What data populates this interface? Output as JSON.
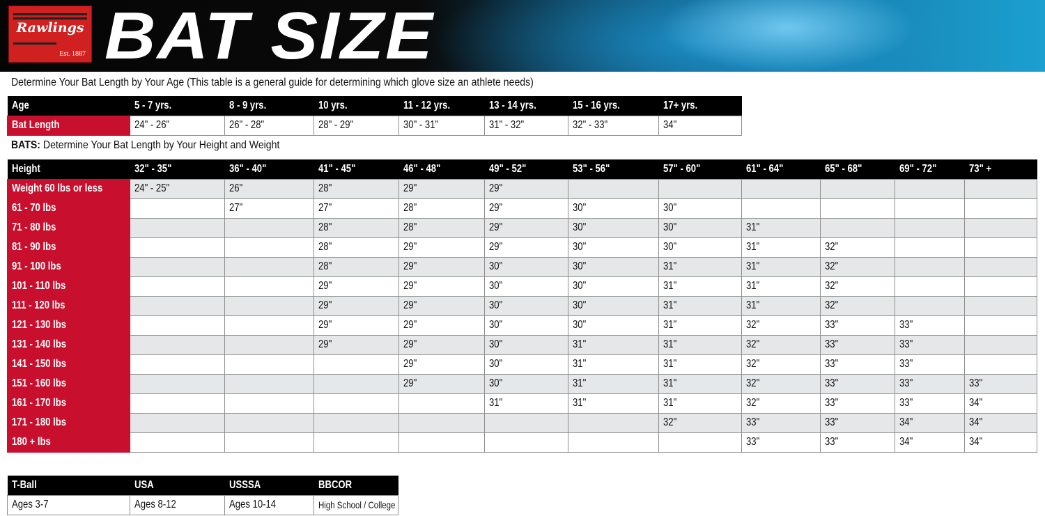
{
  "banner": {
    "logo_text": "Rawlings",
    "logo_est": "Est. 1887",
    "title": "BAT SIZE"
  },
  "age_section": {
    "caption": "Determine Your Bat Length by Your Age (This table is a general guide for determining which glove size an athlete needs)",
    "header": [
      "Age",
      "5 - 7 yrs.",
      "8 - 9 yrs.",
      "10 yrs.",
      "11 - 12 yrs.",
      "13 - 14 yrs.",
      "15 - 16 yrs.",
      "17+ yrs."
    ],
    "row": [
      "Bat Length",
      "24\" - 26\"",
      "26\" - 28\"",
      "28\" - 29\"",
      "30\" - 31\"",
      "31\" - 32\"",
      "32\" - 33\"",
      "34\""
    ]
  },
  "height_section": {
    "caption_bold": "BATS:",
    "caption": "Determine Your Bat Length by Your Height and Weight",
    "header": [
      "Height",
      "32\" - 35\"",
      "36\" - 40\"",
      "41\" - 45\"",
      "46\" - 48\"",
      "49\" - 52\"",
      "53\" - 56\"",
      "57\" - 60\"",
      "61\" - 64\"",
      "65\" - 68\"",
      "69\" - 72\"",
      "73\" +"
    ],
    "rows": [
      [
        "Weight 60 lbs or less",
        "24\" - 25\"",
        "26\"",
        "28\"",
        "29\"",
        "29\"",
        "",
        "",
        "",
        "",
        "",
        ""
      ],
      [
        "61 - 70 lbs",
        "",
        "27\"",
        "27\"",
        "28\"",
        "29\"",
        "30\"",
        "30\"",
        "",
        "",
        "",
        ""
      ],
      [
        "71 - 80 lbs",
        "",
        "",
        "28\"",
        "28\"",
        "29\"",
        "30\"",
        "30\"",
        "31\"",
        "",
        "",
        ""
      ],
      [
        "81 - 90 lbs",
        "",
        "",
        "28\"",
        "29\"",
        "29\"",
        "30\"",
        "30\"",
        "31\"",
        "32\"",
        "",
        ""
      ],
      [
        "91 - 100 lbs",
        "",
        "",
        "28\"",
        "29\"",
        "30\"",
        "30\"",
        "31\"",
        "31\"",
        "32\"",
        "",
        ""
      ],
      [
        "101 - 110 lbs",
        "",
        "",
        "29\"",
        "29\"",
        "30\"",
        "30\"",
        "31\"",
        "31\"",
        "32\"",
        "",
        ""
      ],
      [
        "111 - 120 lbs",
        "",
        "",
        "29\"",
        "29\"",
        "30\"",
        "30\"",
        "31\"",
        "31\"",
        "32\"",
        "",
        ""
      ],
      [
        "121 - 130 lbs",
        "",
        "",
        "29\"",
        "29\"",
        "30\"",
        "30\"",
        "31\"",
        "32\"",
        "33\"",
        "33\"",
        ""
      ],
      [
        "131 - 140 lbs",
        "",
        "",
        "29\"",
        "29\"",
        "30\"",
        "31\"",
        "31\"",
        "32\"",
        "33\"",
        "33\"",
        ""
      ],
      [
        "141 - 150 lbs",
        "",
        "",
        "",
        "29\"",
        "30\"",
        "31\"",
        "31\"",
        "32\"",
        "33\"",
        "33\"",
        ""
      ],
      [
        "151 - 160 lbs",
        "",
        "",
        "",
        "29\"",
        "30\"",
        "31\"",
        "31\"",
        "32\"",
        "33\"",
        "33\"",
        "33\""
      ],
      [
        "161 - 170 lbs",
        "",
        "",
        "",
        "",
        "31\"",
        "31\"",
        "31\"",
        "32\"",
        "33\"",
        "33\"",
        "34\""
      ],
      [
        "171 - 180 lbs",
        "",
        "",
        "",
        "",
        "",
        "",
        "32\"",
        "33\"",
        "33\"",
        "34\"",
        "34\""
      ],
      [
        "180 + lbs",
        "",
        "",
        "",
        "",
        "",
        "",
        "",
        "33\"",
        "33\"",
        "34\"",
        "34\""
      ]
    ]
  },
  "league_section": {
    "header": [
      "T-Ball",
      "USA",
      "USSSA",
      "BBCOR"
    ],
    "row": [
      "Ages 3-7",
      "Ages 8-12",
      "Ages 10-14",
      "High School / College"
    ]
  },
  "colors": {
    "brand_red": "#c8102e",
    "header_black": "#000000",
    "row_alt": "#e6e7e9"
  }
}
